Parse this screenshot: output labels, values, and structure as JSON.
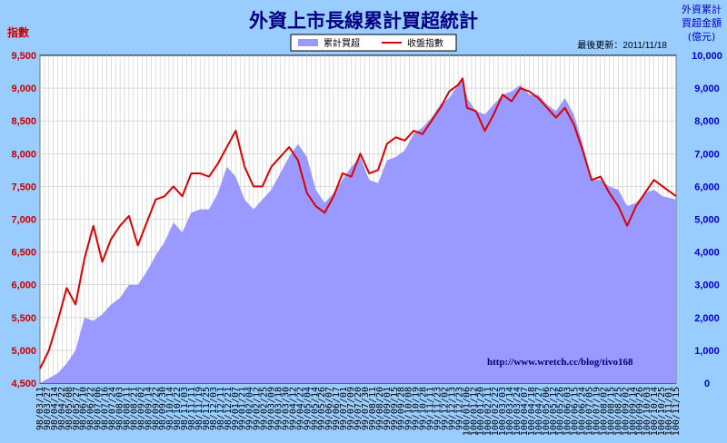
{
  "chart_data": {
    "type": "area",
    "title": "外資上市長線累計買超統計",
    "ylabel_left": "指數",
    "ylabel_right": [
      "外資累計",
      "買超金額",
      "(億元)"
    ],
    "update_note": "最後更新：2011/11/18",
    "watermark_url": "http://www.wretch.cc/blog/tivo168",
    "legend": [
      {
        "name": "累計買超",
        "color": "#9999ff"
      },
      {
        "name": "收盤指數",
        "color": "#dd0000"
      }
    ],
    "legend_position": "top-center",
    "grid": true,
    "ylim_left": [
      4500,
      9500
    ],
    "ylim_right": [
      0,
      10000
    ],
    "yticks_left": [
      "4,500",
      "5,000",
      "5,500",
      "6,000",
      "6,500",
      "7,000",
      "7,500",
      "8,000",
      "8,500",
      "9,000",
      "9,500"
    ],
    "yticks_right": [
      "0",
      "1,000",
      "2,000",
      "3,000",
      "4,000",
      "5,000",
      "6,000",
      "7,000",
      "8,000",
      "9,000",
      "10,000"
    ],
    "x_labels": [
      "98/03/11",
      "98/03/27",
      "98/04/14",
      "98/04/22",
      "98/05/08",
      "98/05/27",
      "98/06/10",
      "98/06/22",
      "98/07/06",
      "98/07/16",
      "98/07/24",
      "98/08/03",
      "98/08/11",
      "98/08/21",
      "98/09/02",
      "98/09/14",
      "98/09/22",
      "98/09/30",
      "98/10/14",
      "98/10/22",
      "98/11/03",
      "98/11/11",
      "98/11/19",
      "98/11/25",
      "98/12/03",
      "98/12/11",
      "98/12/21",
      "99/01/07",
      "99/01/21",
      "99/02/04",
      "99/02/12",
      "99/02/25",
      "99/03/09",
      "99/03/18",
      "99/03/30",
      "99/04/12",
      "99/04/22",
      "99/05/04",
      "99/05/14",
      "99/05/26",
      "99/06/07",
      "99/06/17",
      "99/07/01",
      "99/07/09",
      "99/07/20",
      "99/07/30",
      "99/08/11",
      "99/08/20",
      "99/09/01",
      "99/09/15",
      "99/09/28",
      "99/10/08",
      "99/10/19",
      "99/10/28",
      "99/11/11",
      "99/11/23",
      "99/12/02",
      "99/12/13",
      "99/12/23",
      "100/01/06",
      "100/01/12",
      "100/01/20",
      "100/02/11",
      "100/02/22",
      "100/03/03",
      "100/03/14",
      "100/03/24",
      "100/04/07",
      "100/04/18",
      "100/04/27",
      "100/05/06",
      "100/05/12",
      "100/05/26",
      "100/06/03",
      "100/06/15",
      "100/06/24",
      "100/07/05",
      "100/07/19",
      "100/08/02",
      "100/08/15",
      "100/08/25",
      "100/09/02",
      "100/09/14",
      "100/09/26",
      "100/10/03",
      "100/10/14",
      "100/10/25",
      "100/11/01",
      "100/11/15"
    ],
    "index_anchors": [
      [
        0,
        4720
      ],
      [
        2,
        5000
      ],
      [
        4,
        5450
      ],
      [
        6,
        5950
      ],
      [
        8,
        5700
      ],
      [
        10,
        6400
      ],
      [
        12,
        6900
      ],
      [
        14,
        6350
      ],
      [
        16,
        6700
      ],
      [
        18,
        6900
      ],
      [
        20,
        7050
      ],
      [
        22,
        6600
      ],
      [
        24,
        6950
      ],
      [
        26,
        7300
      ],
      [
        28,
        7350
      ],
      [
        30,
        7500
      ],
      [
        32,
        7350
      ],
      [
        34,
        7700
      ],
      [
        36,
        7700
      ],
      [
        38,
        7650
      ],
      [
        40,
        7850
      ],
      [
        42,
        8100
      ],
      [
        44,
        8350
      ],
      [
        46,
        7800
      ],
      [
        48,
        7500
      ],
      [
        50,
        7500
      ],
      [
        52,
        7800
      ],
      [
        54,
        7950
      ],
      [
        56,
        8100
      ],
      [
        58,
        7900
      ],
      [
        60,
        7400
      ],
      [
        62,
        7200
      ],
      [
        64,
        7100
      ],
      [
        66,
        7350
      ],
      [
        68,
        7700
      ],
      [
        70,
        7650
      ],
      [
        72,
        8000
      ],
      [
        74,
        7700
      ],
      [
        76,
        7750
      ],
      [
        78,
        8150
      ],
      [
        80,
        8250
      ],
      [
        82,
        8200
      ],
      [
        84,
        8350
      ],
      [
        86,
        8300
      ],
      [
        88,
        8500
      ],
      [
        90,
        8700
      ],
      [
        92,
        8950
      ],
      [
        94,
        9050
      ],
      [
        95,
        9150
      ],
      [
        96,
        8700
      ],
      [
        98,
        8650
      ],
      [
        100,
        8350
      ],
      [
        102,
        8600
      ],
      [
        104,
        8900
      ],
      [
        106,
        8800
      ],
      [
        108,
        9000
      ],
      [
        110,
        8950
      ],
      [
        112,
        8850
      ],
      [
        114,
        8700
      ],
      [
        116,
        8550
      ],
      [
        118,
        8700
      ],
      [
        120,
        8450
      ],
      [
        122,
        8050
      ],
      [
        124,
        7600
      ],
      [
        126,
        7650
      ],
      [
        128,
        7400
      ],
      [
        130,
        7200
      ],
      [
        132,
        6900
      ],
      [
        134,
        7200
      ],
      [
        136,
        7400
      ],
      [
        138,
        7600
      ],
      [
        140,
        7500
      ],
      [
        143,
        7350
      ]
    ],
    "net_buy_anchors": [
      [
        0,
        0
      ],
      [
        4,
        300
      ],
      [
        6,
        600
      ],
      [
        8,
        1000
      ],
      [
        10,
        2000
      ],
      [
        12,
        1900
      ],
      [
        14,
        2100
      ],
      [
        16,
        2400
      ],
      [
        18,
        2600
      ],
      [
        20,
        3000
      ],
      [
        22,
        3000
      ],
      [
        24,
        3400
      ],
      [
        26,
        3900
      ],
      [
        28,
        4300
      ],
      [
        30,
        4900
      ],
      [
        32,
        4600
      ],
      [
        34,
        5200
      ],
      [
        36,
        5300
      ],
      [
        38,
        5300
      ],
      [
        40,
        5800
      ],
      [
        42,
        6600
      ],
      [
        44,
        6300
      ],
      [
        46,
        5600
      ],
      [
        48,
        5300
      ],
      [
        50,
        5600
      ],
      [
        52,
        5900
      ],
      [
        54,
        6400
      ],
      [
        56,
        6900
      ],
      [
        58,
        7300
      ],
      [
        60,
        6900
      ],
      [
        62,
        5900
      ],
      [
        64,
        5500
      ],
      [
        66,
        5800
      ],
      [
        68,
        6200
      ],
      [
        70,
        6600
      ],
      [
        72,
        6900
      ],
      [
        74,
        6200
      ],
      [
        76,
        6100
      ],
      [
        78,
        6800
      ],
      [
        80,
        6900
      ],
      [
        82,
        7100
      ],
      [
        84,
        7600
      ],
      [
        86,
        7800
      ],
      [
        88,
        8100
      ],
      [
        90,
        8500
      ],
      [
        92,
        8700
      ],
      [
        94,
        9100
      ],
      [
        95,
        9300
      ],
      [
        96,
        8700
      ],
      [
        98,
        8300
      ],
      [
        100,
        8200
      ],
      [
        102,
        8500
      ],
      [
        104,
        8800
      ],
      [
        106,
        8900
      ],
      [
        108,
        9100
      ],
      [
        110,
        8800
      ],
      [
        112,
        8800
      ],
      [
        114,
        8500
      ],
      [
        116,
        8300
      ],
      [
        118,
        8700
      ],
      [
        120,
        8200
      ],
      [
        122,
        7300
      ],
      [
        124,
        6200
      ],
      [
        126,
        6200
      ],
      [
        128,
        6000
      ],
      [
        130,
        5900
      ],
      [
        132,
        5400
      ],
      [
        134,
        5500
      ],
      [
        136,
        5800
      ],
      [
        138,
        5900
      ],
      [
        140,
        5700
      ],
      [
        143,
        5600
      ]
    ],
    "samples": 144
  }
}
